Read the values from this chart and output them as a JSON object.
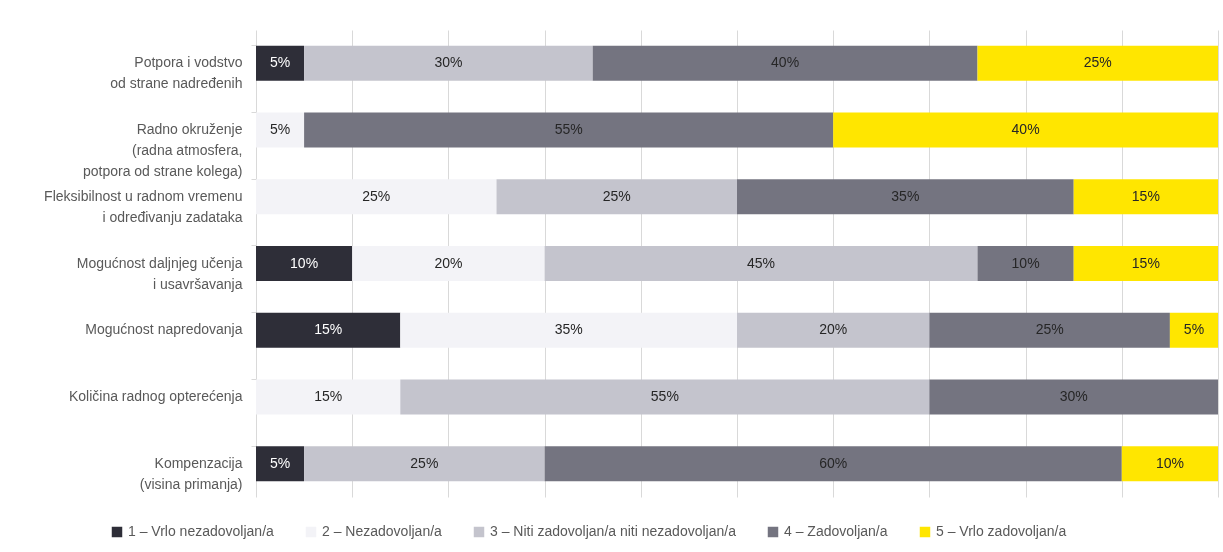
{
  "chart_data": {
    "type": "bar",
    "orientation": "horizontal",
    "stacked": true,
    "categories": [
      "Potpora i vodstvo\nod strane nadređenih",
      "Radno okruženje\n(radna atmosfera,\npotpora od strane kolega)",
      "Fleksibilnost u radnom vremenu\ni određivanju zadataka",
      "Mogućnost daljnjeg učenja\ni usavršavanja",
      "Mogućnost napredovanja",
      "Količina radnog opterećenja",
      "Kompenzacija\n(visina primanja)"
    ],
    "series": [
      {
        "name": "1 – Vrlo nezadovoljan/a",
        "color": "#2e2e38",
        "values": [
          5,
          null,
          null,
          10,
          15,
          null,
          5
        ],
        "value_labels": [
          "5%",
          null,
          null,
          "10%",
          "15%",
          null,
          "5%"
        ]
      },
      {
        "name": "2 – Nezadovoljan/a",
        "color": "#f3f3f7",
        "values": [
          null,
          5,
          25,
          20,
          35,
          15,
          null
        ],
        "value_labels": [
          null,
          "5%",
          "25%",
          "20%",
          "35%",
          "15%",
          null
        ]
      },
      {
        "name": "3 – Niti zadovoljan/a niti nezadovoljan/a",
        "color": "#c4c4cd",
        "values": [
          30,
          null,
          25,
          45,
          20,
          55,
          25
        ],
        "value_labels": [
          "30%",
          null,
          "25%",
          "45%",
          "20%",
          "55%",
          "25%"
        ]
      },
      {
        "name": "4 – Zadovoljan/a",
        "color": "#747480",
        "values": [
          40,
          55,
          35,
          10,
          25,
          30,
          60
        ],
        "value_labels": [
          "40%",
          "55%",
          "35%",
          "10%",
          "25%",
          "30%",
          "60%"
        ]
      },
      {
        "name": "5 – Vrlo zadovoljan/a",
        "color": "#ffe600",
        "values": [
          25,
          40,
          15,
          15,
          5,
          null,
          10
        ],
        "value_labels": [
          "25%",
          "40%",
          "15%",
          "15%",
          "5%",
          null,
          "10%"
        ]
      }
    ],
    "xlim": [
      0,
      100
    ],
    "xticks": [
      {
        "value": 0,
        "label": null
      },
      {
        "value": 10,
        "label": null
      },
      {
        "value": 20,
        "label": null
      },
      {
        "value": 30,
        "label": null
      },
      {
        "value": 40,
        "label": null
      },
      {
        "value": 50,
        "label": null
      },
      {
        "value": 60,
        "label": null
      },
      {
        "value": 70,
        "label": null
      },
      {
        "value": 80,
        "label": null
      },
      {
        "value": 90,
        "label": null
      },
      {
        "value": 100,
        "label": null
      }
    ],
    "tick_labels": "y",
    "grid": "x",
    "legend": "bottom"
  }
}
